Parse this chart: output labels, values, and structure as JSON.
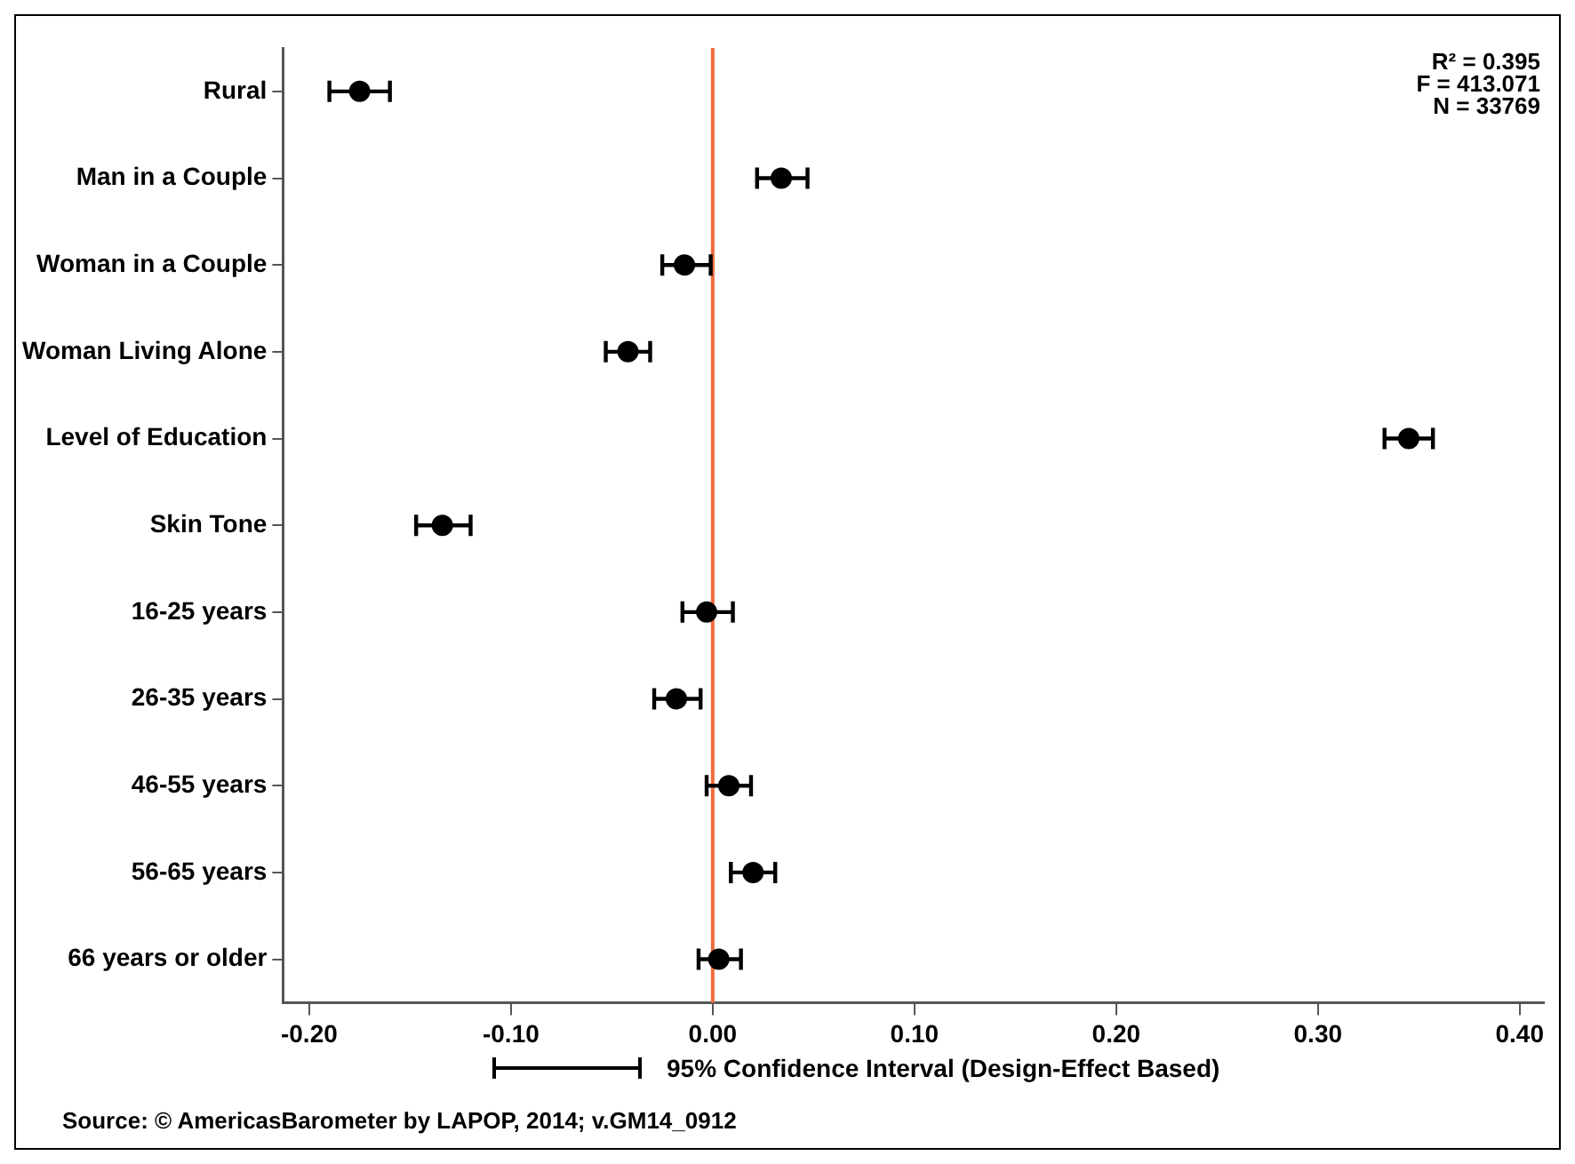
{
  "chart_data": {
    "type": "scatter",
    "orientation": "horizontal",
    "categories": [
      "Rural",
      "Man in a Couple",
      "Woman in a Couple",
      "Woman Living Alone",
      "Level of Education",
      "Skin Tone",
      "16-25 years",
      "26-35 years",
      "46-55 years",
      "56-65 years",
      "66 years or older"
    ],
    "values": [
      -0.175,
      0.034,
      -0.014,
      -0.042,
      0.345,
      -0.134,
      -0.003,
      -0.018,
      0.008,
      0.02,
      0.003
    ],
    "errors": [
      [
        -0.19,
        -0.16
      ],
      [
        0.022,
        0.047
      ],
      [
        -0.025,
        -0.001
      ],
      [
        -0.053,
        -0.031
      ],
      [
        0.333,
        0.357
      ],
      [
        -0.147,
        -0.12
      ],
      [
        -0.015,
        0.01
      ],
      [
        -0.029,
        -0.006
      ],
      [
        -0.003,
        0.019
      ],
      [
        0.009,
        0.031
      ],
      [
        -0.007,
        0.014
      ]
    ],
    "color": "#000000",
    "marker": "circle",
    "xlim": [
      -0.213,
      0.412
    ],
    "xticks": [
      {
        "value": -0.2,
        "label": "-0.20"
      },
      {
        "value": -0.1,
        "label": "-0.10"
      },
      {
        "value": 0,
        "label": "0.00"
      },
      {
        "value": 0.1,
        "label": "0.10"
      },
      {
        "value": 0.2,
        "label": "0.20"
      },
      {
        "value": 0.3,
        "label": "0.30"
      },
      {
        "value": 0.4,
        "label": "0.40"
      }
    ],
    "ref_lines": [
      {
        "axis": "x",
        "value": 0,
        "color": "#f06a3c"
      }
    ],
    "grid": false,
    "annotations": [
      "R² = 0.395",
      "F = 413.071",
      "N = 33769",
      "95% Confidence Interval (Design-Effect Based)",
      "Source: © AmericasBarometer by LAPOP, 2014; v.GM14_0912"
    ]
  }
}
